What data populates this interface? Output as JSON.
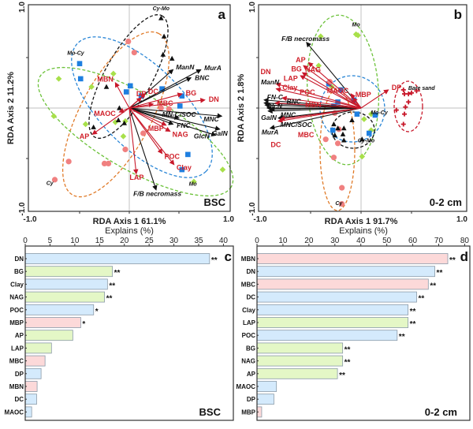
{
  "colors": {
    "env_arrow": "#c8182a",
    "necromass_arrow": "#111111",
    "Cy": "#f08080",
    "Mo": "#a8e04a",
    "Mo-Cy": "#1e7fe0",
    "Cy-Mo": "#111111",
    "Bare sand": "#c8182a",
    "ellipse_Cy": "#e07a28",
    "ellipse_Mo": "#6cc23a",
    "ellipse_Mo-Cy": "#2a86d6",
    "ellipse_Cy-Mo": "#111111",
    "ellipse_Bare sand": "#c8182a",
    "bar_blue": "#d4eafc",
    "bar_green": "#e4f7c6",
    "bar_pink": "#fcd9d9",
    "bar_border": "#8a9aa8"
  },
  "chart_data": [
    {
      "panel": "a",
      "type": "scatter",
      "subtitle": "BSC",
      "xlabel": "RDA Axis 1 61.1%",
      "ylabel": "RDA Axis 2 11.2%",
      "xlim": [
        -1.0,
        1.0
      ],
      "ylim": [
        -1.0,
        1.0
      ],
      "xticks": [
        "-1.0",
        "1.0"
      ],
      "yticks": [
        "1.0",
        "-1.0"
      ],
      "env_vectors": [
        {
          "name": "DN",
          "x": 0.76,
          "y": 0.08
        },
        {
          "name": "BG",
          "x": 0.53,
          "y": 0.14
        },
        {
          "name": "MBC",
          "x": 0.24,
          "y": 0.04
        },
        {
          "name": "DC",
          "x": 0.16,
          "y": 0.14
        },
        {
          "name": "DP",
          "x": 0.12,
          "y": 0.1
        },
        {
          "name": "MBN",
          "x": -0.14,
          "y": 0.25
        },
        {
          "name": "MAOC",
          "x": -0.1,
          "y": -0.04
        },
        {
          "name": "AP",
          "x": -0.37,
          "y": -0.26
        },
        {
          "name": "LAP",
          "x": 0.07,
          "y": -0.65
        },
        {
          "name": "POC",
          "x": 0.33,
          "y": -0.45
        },
        {
          "name": "Clay",
          "x": 0.45,
          "y": -0.56
        },
        {
          "name": "NAG",
          "x": 0.41,
          "y": -0.23
        },
        {
          "name": "MBP",
          "x": 0.37,
          "y": -0.17
        }
      ],
      "necromass_vectors": [
        {
          "name": "MurA",
          "x": 0.72,
          "y": 0.38
        },
        {
          "name": "BNC",
          "x": 0.62,
          "y": 0.3
        },
        {
          "name": "ManN",
          "x": 0.44,
          "y": 0.38
        },
        {
          "name": "MNC",
          "x": 0.93,
          "y": -0.08
        },
        {
          "name": "GalN",
          "x": 0.91,
          "y": -0.21
        },
        {
          "name": "GlcN",
          "x": 0.87,
          "y": -0.27
        },
        {
          "name": "FNC",
          "x": 0.44,
          "y": -0.16
        },
        {
          "name": "MN-C/SOC",
          "x": 0.5,
          "y": -0.1
        },
        {
          "name": "F/B necromass",
          "x": 0.27,
          "y": -0.81
        }
      ],
      "groups": [
        {
          "name": "Cy",
          "marker": "circle",
          "points": [
            [
              -0.01,
              0.66
            ],
            [
              0.05,
              0.55
            ],
            [
              -0.61,
              -0.53
            ],
            [
              -0.75,
              -0.71
            ],
            [
              -0.25,
              -0.55
            ],
            [
              -0.21,
              -0.55
            ],
            [
              -0.04,
              -0.41
            ],
            [
              0.14,
              -0.25
            ],
            [
              0.32,
              0.0
            ],
            [
              0.4,
              -0.01
            ]
          ]
        },
        {
          "name": "Mo",
          "marker": "diamond",
          "points": [
            [
              -0.71,
              0.29
            ],
            [
              -0.38,
              0.21
            ],
            [
              -0.16,
              0.34
            ],
            [
              -0.76,
              -0.08
            ],
            [
              -0.44,
              -0.16
            ],
            [
              -0.14,
              -0.14
            ],
            [
              -0.04,
              -0.13
            ],
            [
              -0.06,
              -0.28
            ],
            [
              0.94,
              -0.61
            ],
            [
              0.65,
              -0.73
            ]
          ]
        },
        {
          "name": "Mo-Cy",
          "marker": "square",
          "points": [
            [
              -0.5,
              0.44
            ],
            [
              -0.49,
              0.29
            ],
            [
              0.01,
              0.22
            ],
            [
              -0.03,
              0.16
            ],
            [
              0.12,
              0.12
            ],
            [
              0.33,
              0.19
            ],
            [
              0.53,
              0.12
            ],
            [
              0.51,
              0.02
            ],
            [
              0.59,
              -0.46
            ],
            [
              0.53,
              -0.61
            ]
          ]
        },
        {
          "name": "Cy-Mo",
          "marker": "triangle",
          "points": [
            [
              0.32,
              0.89
            ],
            [
              0.35,
              0.71
            ],
            [
              0.34,
              0.53
            ],
            [
              0.43,
              0.49
            ],
            [
              -0.23,
              0.21
            ],
            [
              -0.1,
              0.0
            ],
            [
              -0.11,
              -0.12
            ],
            [
              -0.05,
              -0.15
            ],
            [
              -0.36,
              -0.19
            ]
          ]
        }
      ],
      "group_labels": [
        {
          "text": "Cy-Mo",
          "x": 0.32,
          "y": 0.93
        },
        {
          "text": "Mo-Cy",
          "x": -0.54,
          "y": 0.49
        },
        {
          "text": "Cy",
          "x": -0.8,
          "y": -0.8
        },
        {
          "text": "Mo",
          "x": 0.64,
          "y": -0.81
        }
      ]
    },
    {
      "panel": "b",
      "type": "scatter",
      "subtitle": "0-2 cm",
      "xlabel": "RDA Axis 1 91.7%",
      "ylabel": "RDA Axis 2 1.8%",
      "xlim": [
        -1.0,
        1.0
      ],
      "ylim": [
        -1.0,
        1.0
      ],
      "xticks": [
        "-1.0",
        "1.0"
      ],
      "yticks": [
        "1.0",
        "-1.0"
      ],
      "env_vectors": [
        {
          "name": "AP",
          "x": -0.52,
          "y": 0.45
        },
        {
          "name": "BG",
          "x": -0.57,
          "y": 0.42
        },
        {
          "name": "NAG",
          "x": -0.58,
          "y": 0.35
        },
        {
          "name": "LAP",
          "x": -0.6,
          "y": 0.32
        },
        {
          "name": "DN",
          "x": -0.84,
          "y": 0.24
        },
        {
          "name": "Clay",
          "x": -0.84,
          "y": 0.19
        },
        {
          "name": "POC",
          "x": -0.78,
          "y": 0.1
        },
        {
          "name": "MBN",
          "x": -0.85,
          "y": 0.05
        },
        {
          "name": "DC",
          "x": -0.82,
          "y": -0.13
        },
        {
          "name": "MBC",
          "x": -0.8,
          "y": -0.11
        },
        {
          "name": "MAOC",
          "x": -0.1,
          "y": 0.14
        },
        {
          "name": "MBP",
          "x": -0.08,
          "y": 0.1
        },
        {
          "name": "DP",
          "x": 0.27,
          "y": 0.18
        }
      ],
      "necromass_vectors": [
        {
          "name": "F/B necromass",
          "x": -0.54,
          "y": 0.65
        },
        {
          "name": "FN-C",
          "x": -0.96,
          "y": 0.08
        },
        {
          "name": "GlcN",
          "x": -0.96,
          "y": 0.05
        },
        {
          "name": "GalN",
          "x": -0.93,
          "y": 0.0
        },
        {
          "name": "MNC",
          "x": -0.82,
          "y": -0.1
        },
        {
          "name": "MurA",
          "x": -0.9,
          "y": -0.2
        },
        {
          "name": "ManN",
          "x": -0.95,
          "y": 0.03
        },
        {
          "name": "BNC",
          "x": -0.9,
          "y": -0.01
        },
        {
          "name": "MNC/SOC",
          "x": -0.92,
          "y": -0.03
        }
      ],
      "groups": [
        {
          "name": "Bare sand",
          "marker": "cross",
          "points": [
            [
              0.42,
              0.18
            ],
            [
              0.43,
              0.14
            ],
            [
              0.47,
              0.14
            ],
            [
              0.47,
              0.06
            ],
            [
              0.44,
              0.01
            ],
            [
              0.43,
              -0.06
            ],
            [
              0.42,
              -0.16
            ],
            [
              0.35,
              -0.02
            ],
            [
              0.55,
              0.17
            ],
            [
              0.5,
              0.15
            ]
          ]
        },
        {
          "name": "Mo",
          "marker": "diamond",
          "points": [
            [
              -0.4,
              0.71
            ],
            [
              -0.05,
              0.73
            ],
            [
              -0.03,
              0.72
            ],
            [
              -0.42,
              0.42
            ],
            [
              -0.29,
              0.21
            ],
            [
              0.1,
              -0.06
            ],
            [
              0.03,
              -0.11
            ],
            [
              0.1,
              -0.22
            ],
            [
              0.01,
              -0.48
            ]
          ]
        },
        {
          "name": "Mo-Cy",
          "marker": "square",
          "points": [
            [
              -0.32,
              0.24
            ],
            [
              -0.2,
              0.18
            ],
            [
              -0.07,
              0.08
            ],
            [
              -0.23,
              0.06
            ],
            [
              -0.27,
              0.02
            ],
            [
              -0.04,
              -0.06
            ],
            [
              0.14,
              -0.07
            ],
            [
              0.08,
              -0.25
            ],
            [
              -0.28,
              -0.22
            ]
          ]
        },
        {
          "name": "Cy",
          "marker": "circle",
          "points": [
            [
              -0.31,
              0.26
            ],
            [
              -0.26,
              -0.05
            ],
            [
              -0.22,
              -0.21
            ],
            [
              -0.35,
              -0.31
            ],
            [
              -0.23,
              -0.35
            ],
            [
              -0.27,
              -0.49
            ],
            [
              -0.19,
              -0.79
            ],
            [
              -0.19,
              -0.95
            ]
          ]
        },
        {
          "name": "Cy-Mo",
          "marker": "triangle",
          "points": [
            [
              -0.27,
              -0.16
            ],
            [
              -0.17,
              -0.2
            ],
            [
              -0.23,
              -0.2
            ],
            [
              -0.18,
              -0.26
            ],
            [
              -0.17,
              -0.32
            ],
            [
              -0.26,
              -0.27
            ],
            [
              0.01,
              -0.31
            ],
            [
              -0.09,
              -0.12
            ]
          ]
        }
      ],
      "group_labels": [
        {
          "text": "Mo",
          "x": -0.05,
          "y": 0.77
        },
        {
          "text": "Bare sand",
          "x": 0.6,
          "y": 0.14
        },
        {
          "text": "Mo-Cy",
          "x": 0.18,
          "y": -0.1
        },
        {
          "text": "Cy-Mo",
          "x": 0.05,
          "y": -0.38
        },
        {
          "text": "Cy",
          "x": -0.22,
          "y": -1.0
        }
      ]
    },
    {
      "panel": "c",
      "type": "bar",
      "orientation": "horizontal",
      "subtitle": "BSC",
      "xlabel": "Explains (%)",
      "xlim": [
        0,
        42
      ],
      "xticks": [
        0,
        5,
        10,
        15,
        20,
        25,
        30,
        35,
        40
      ],
      "categories": [
        "DN",
        "BG",
        "Clay",
        "NAG",
        "POC",
        "MBP",
        "AP",
        "LAP",
        "MBC",
        "DP",
        "MBN",
        "DC",
        "MAOC"
      ],
      "values": [
        37.2,
        17.6,
        16.6,
        16.0,
        13.8,
        11.2,
        9.6,
        5.3,
        4.0,
        3.2,
        2.4,
        2.3,
        1.3
      ],
      "colors": [
        "blue",
        "green",
        "blue",
        "green",
        "blue",
        "pink",
        "green",
        "green",
        "pink",
        "blue",
        "pink",
        "blue",
        "blue"
      ],
      "significance": [
        "**",
        "**",
        "**",
        "**",
        "*",
        "*",
        "",
        "",
        "",
        "",
        "",
        "",
        ""
      ]
    },
    {
      "panel": "d",
      "type": "bar",
      "orientation": "horizontal",
      "subtitle": "0-2 cm",
      "xlabel": "Explains (%)",
      "xlim": [
        0,
        82
      ],
      "xticks": [
        0,
        10,
        20,
        30,
        40,
        50,
        60,
        70,
        80
      ],
      "categories": [
        "MBN",
        "DN",
        "MBC",
        "DC",
        "Clay",
        "LAP",
        "POC",
        "BG",
        "NAG",
        "AP",
        "MAOC",
        "DP",
        "MBP"
      ],
      "values": [
        73.5,
        68.5,
        66.0,
        61.5,
        58.2,
        58.2,
        54.0,
        33.0,
        33.0,
        31.0,
        7.5,
        6.5,
        1.8
      ],
      "colors": [
        "pink",
        "blue",
        "pink",
        "blue",
        "blue",
        "green",
        "blue",
        "green",
        "green",
        "green",
        "blue",
        "blue",
        "pink"
      ],
      "significance": [
        "**",
        "**",
        "**",
        "**",
        "**",
        "**",
        "**",
        "**",
        "**",
        "**",
        "",
        "",
        ""
      ]
    }
  ]
}
